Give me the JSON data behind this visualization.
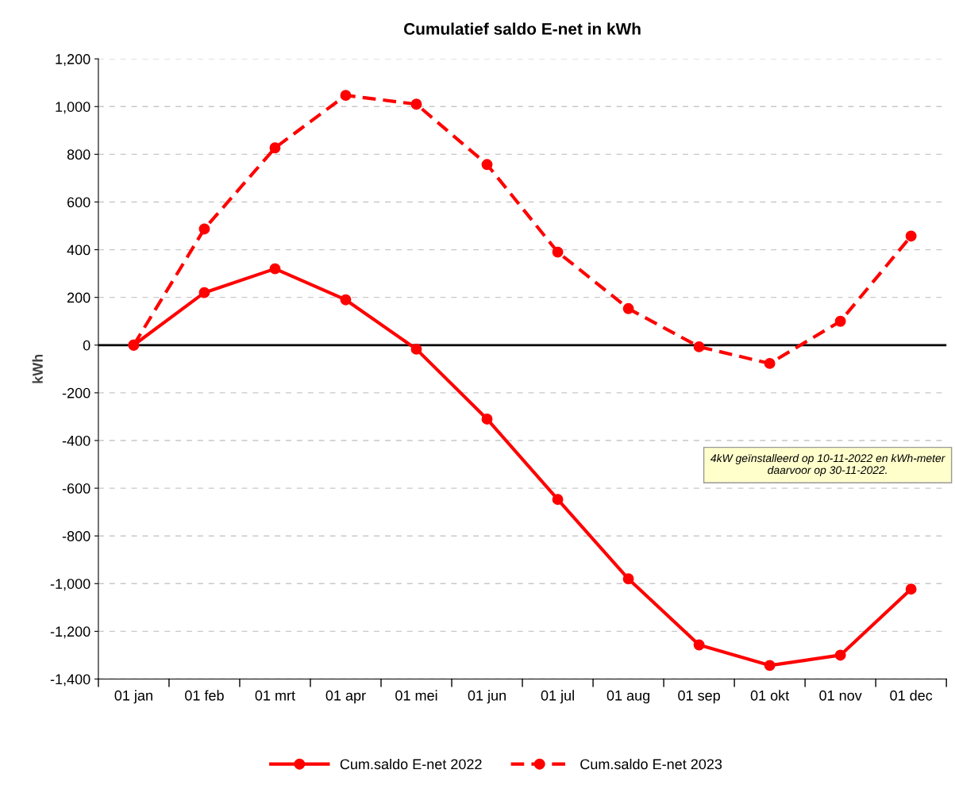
{
  "chart_data": {
    "type": "line",
    "title": "Cumulatief saldo E-net in kWh",
    "ylabel": "kWh",
    "categories": [
      "01 jan",
      "01 feb",
      "01 mrt",
      "01 apr",
      "01 mei",
      "01 jun",
      "01 jul",
      "01 aug",
      "01 sep",
      "01 okt",
      "01 nov",
      "01 dec"
    ],
    "series": [
      {
        "name": "Cum.saldo E-net 2022",
        "color": "#ff0000",
        "line_style": "solid",
        "values": [
          0,
          220,
          320,
          190,
          -17,
          -310,
          -647,
          -980,
          -1257,
          -1343,
          -1300,
          -1023
        ]
      },
      {
        "name": "Cum.saldo E-net 2023",
        "color": "#ff0000",
        "line_style": "dashed",
        "values": [
          0,
          487,
          827,
          1047,
          1010,
          757,
          390,
          153,
          -7,
          -77,
          100,
          457
        ]
      }
    ],
    "ylim": [
      -1400,
      1200
    ],
    "yticks": [
      {
        "value": -1400,
        "label": "-1,400"
      },
      {
        "value": -1200,
        "label": "-1,200"
      },
      {
        "value": -1000,
        "label": "-1,000"
      },
      {
        "value": -800,
        "label": "-800"
      },
      {
        "value": -600,
        "label": "-600"
      },
      {
        "value": -400,
        "label": "-400"
      },
      {
        "value": -200,
        "label": "-200"
      },
      0,
      200,
      400,
      600,
      800,
      {
        "value": 1000,
        "label": "1,000"
      },
      {
        "value": 1200,
        "label": "1,200"
      }
    ],
    "ref_lines": [
      {
        "axis": "y",
        "value": 0,
        "color": "#000000"
      }
    ],
    "annotations": [
      "4kW geïnstalleerd op 10-11-2022 en kWh-meter daarvoor op 30-11-2022."
    ],
    "grid": "y",
    "legend": "bottom",
    "marker": "circle"
  }
}
